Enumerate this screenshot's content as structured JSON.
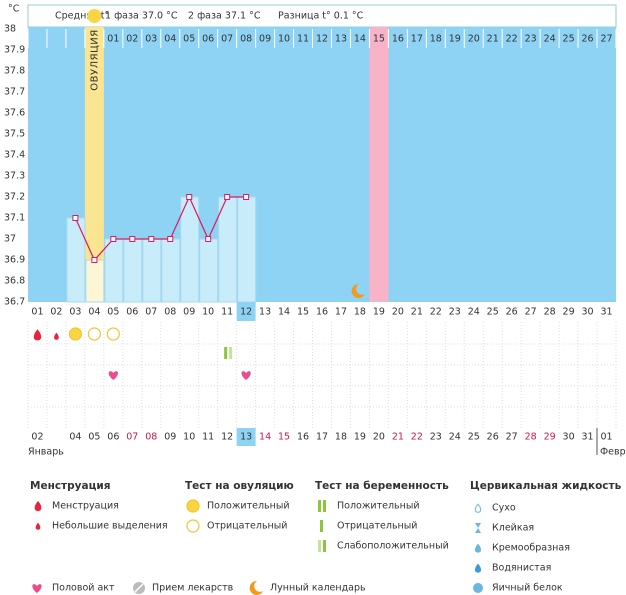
{
  "header": {
    "unit": "°C",
    "avg": "Средняя t°",
    "phase1": "1 фаза 37.0 °C",
    "phase2": "2 фаза 37.1 °C",
    "diff": "Разница t° 0.1 °C"
  },
  "chart_data": {
    "type": "line",
    "color": "#d81b60",
    "bar_color": "#c9ecfb",
    "ovulation_label": "ОВУЛЯЦИЯ",
    "categories": [
      "01",
      "02",
      "03",
      "04",
      "05",
      "06",
      "07",
      "08",
      "09",
      "10",
      "11",
      "12",
      "13",
      "14",
      "15",
      "16",
      "17",
      "18",
      "19",
      "20",
      "21",
      "22",
      "23",
      "24",
      "25",
      "26",
      "27",
      "28",
      "29",
      "30",
      "31"
    ],
    "cycle_days": [
      null,
      null,
      null,
      null,
      "01",
      "02",
      "03",
      "04",
      "05",
      "06",
      "07",
      "08",
      "09",
      "10",
      "11",
      "12",
      "13",
      "14",
      "15",
      "16",
      "17",
      "18",
      "19",
      "20",
      "21",
      "22",
      "23",
      "24",
      "25",
      "26",
      "27"
    ],
    "month_dates": [
      "02",
      null,
      "04",
      "05",
      "06",
      "07",
      "08",
      "09",
      "10",
      "11",
      "12",
      "13",
      "14",
      "15",
      "16",
      "17",
      "18",
      "19",
      "20",
      "21",
      "22",
      "23",
      "24",
      "25",
      "26",
      "27",
      "28",
      "29",
      "30",
      "31",
      "01"
    ],
    "values": [
      null,
      null,
      37.1,
      36.9,
      37.0,
      37.0,
      37.0,
      37.0,
      37.2,
      37.0,
      37.2,
      37.2,
      null,
      null,
      null,
      null,
      null,
      null,
      null,
      null,
      null,
      null,
      null,
      null,
      null,
      null,
      null,
      null,
      null,
      null,
      null
    ],
    "ylim": [
      36.7,
      38
    ],
    "yticks": [
      38,
      37.9,
      37.8,
      37.7,
      37.6,
      37.5,
      37.4,
      37.3,
      37.2,
      37.1,
      37,
      36.9,
      36.8,
      36.7
    ],
    "grid": false
  },
  "months": [
    "Январь",
    "Февр"
  ],
  "legend": {
    "groups": [
      {
        "title": "Менструация",
        "items": [
          "Менструация",
          "Небольшие выделения"
        ]
      },
      {
        "title": "Тест на овуляцию",
        "items": [
          "Положительный",
          "Отрицательный"
        ]
      },
      {
        "title": "Тест на беременность",
        "items": [
          "Положительный",
          "Отрицательный",
          "Слабоположительный"
        ]
      },
      {
        "title": "Цервикальная жидкость",
        "items": [
          "Сухо",
          "Клейкая",
          "Кремообразная",
          "Водянистая",
          "Яичный белок"
        ]
      }
    ],
    "extras": [
      "Половой акт",
      "Прием лекарств",
      "Лунный календарь"
    ]
  }
}
